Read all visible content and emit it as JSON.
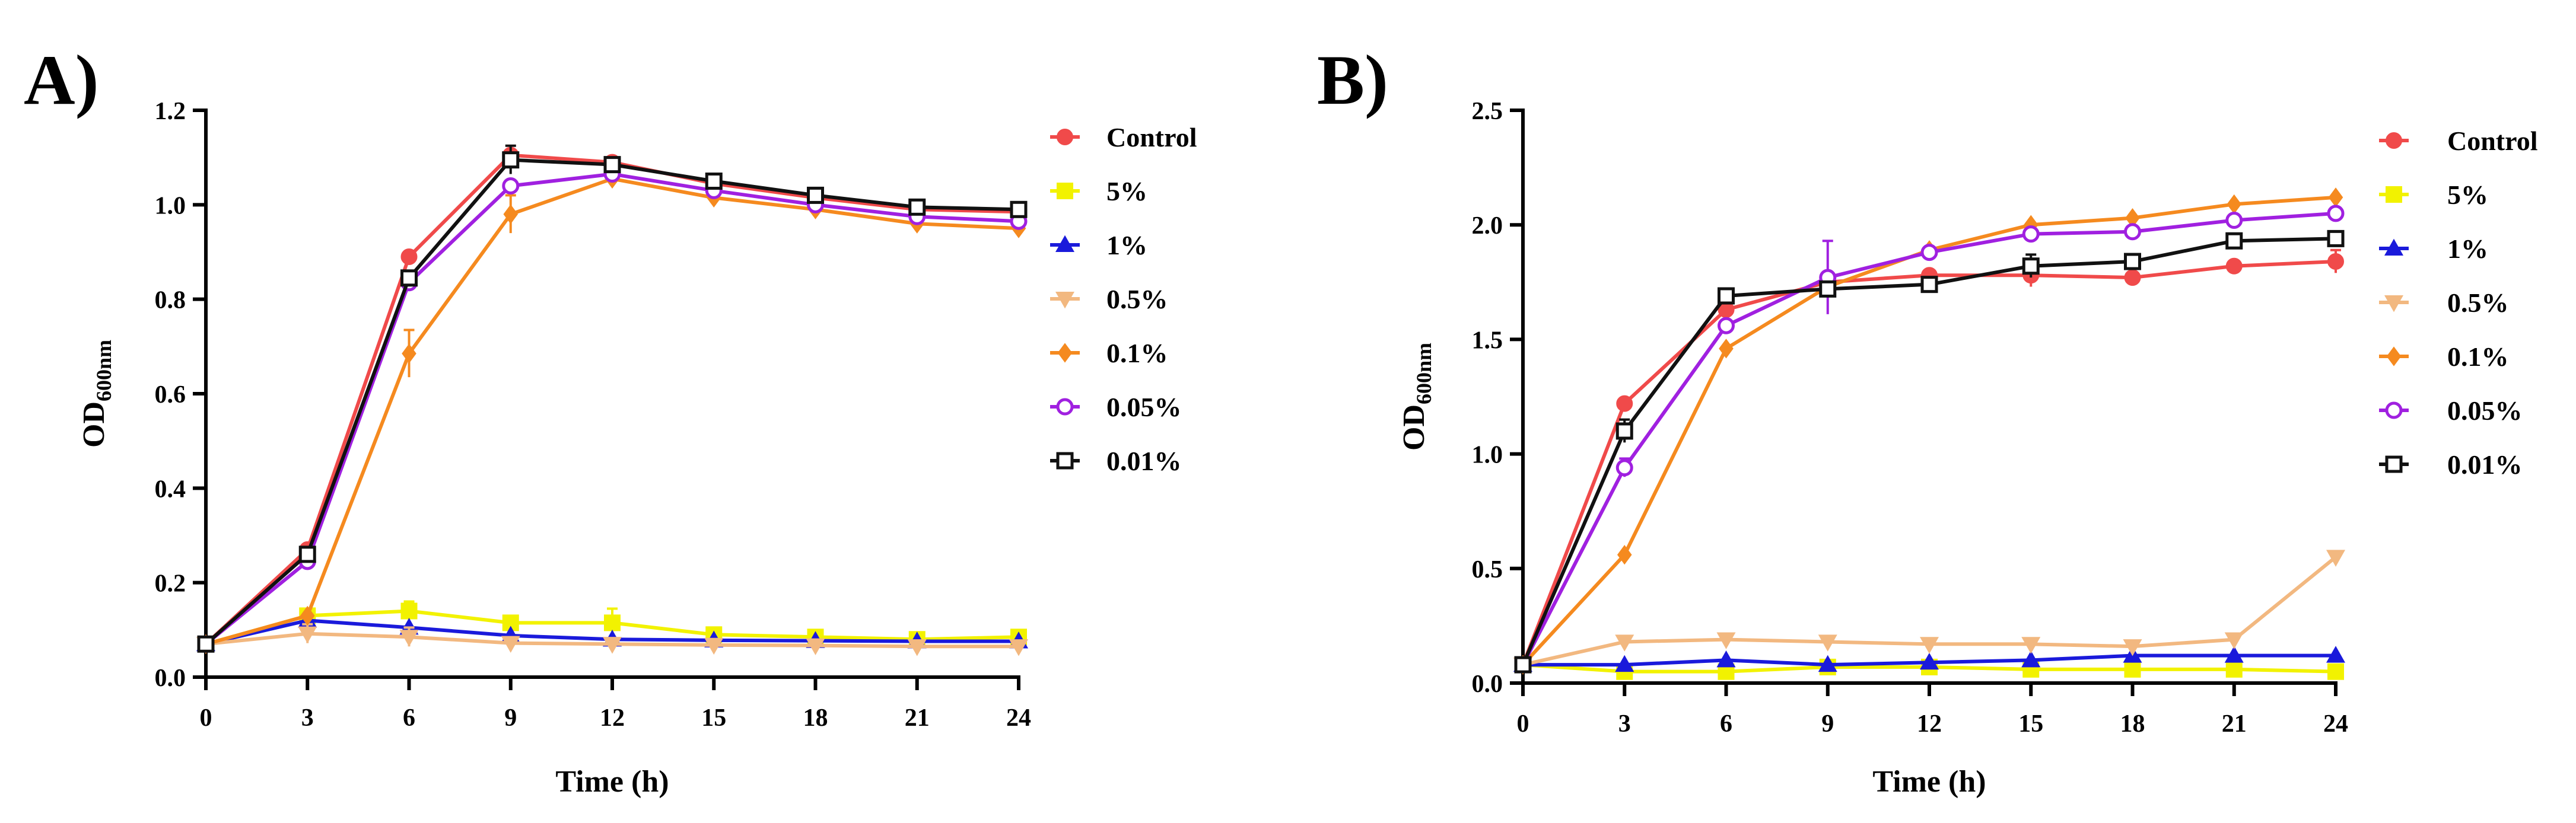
{
  "chart_data": [
    {
      "type": "line",
      "panel_label": "A)",
      "title": "",
      "xlabel": "Time (h)",
      "ylabel_main": "OD",
      "ylabel_sub": "600nm",
      "x": [
        0,
        3,
        6,
        9,
        12,
        15,
        18,
        21,
        24
      ],
      "xlim": [
        0,
        24
      ],
      "ylim": [
        0,
        1.2
      ],
      "xticks": [
        0,
        3,
        6,
        9,
        12,
        15,
        18,
        21,
        24
      ],
      "yticks": [
        0.0,
        0.2,
        0.4,
        0.6,
        0.8,
        1.0,
        1.2
      ],
      "ytick_labels": [
        "0.0",
        "0.2",
        "0.4",
        "0.6",
        "0.8",
        "1.0",
        "1.2"
      ],
      "grid": false,
      "legend_position": "right",
      "series": [
        {
          "name": "Control",
          "color": "#f04a4a",
          "marker": "circle-filled",
          "values": [
            0.07,
            0.27,
            0.89,
            1.105,
            1.09,
            1.045,
            1.015,
            0.99,
            0.985
          ],
          "errors": [
            0,
            0,
            0,
            0,
            0,
            0,
            0,
            0,
            0
          ]
        },
        {
          "name": "5%",
          "color": "#f2f200",
          "marker": "square-filled",
          "values": [
            0.07,
            0.13,
            0.14,
            0.115,
            0.115,
            0.09,
            0.085,
            0.08,
            0.085
          ],
          "errors": [
            0,
            0.01,
            0.02,
            0.01,
            0.03,
            0.01,
            0,
            0,
            0.01
          ]
        },
        {
          "name": "1%",
          "color": "#1a1adb",
          "marker": "triangle-up",
          "values": [
            0.07,
            0.12,
            0.105,
            0.088,
            0.08,
            0.078,
            0.077,
            0.076,
            0.076
          ],
          "errors": [
            0,
            0,
            0,
            0,
            0,
            0,
            0,
            0,
            0
          ]
        },
        {
          "name": "0.5%",
          "color": "#f2b880",
          "marker": "triangle-down",
          "values": [
            0.07,
            0.092,
            0.085,
            0.072,
            0.07,
            0.068,
            0.067,
            0.065,
            0.065
          ],
          "errors": [
            0,
            0.02,
            0.02,
            0,
            0,
            0,
            0,
            0,
            0
          ]
        },
        {
          "name": "0.1%",
          "color": "#f58a1f",
          "marker": "diamond",
          "values": [
            0.07,
            0.13,
            0.685,
            0.98,
            1.055,
            1.015,
            0.99,
            0.96,
            0.95
          ],
          "errors": [
            0,
            0,
            0.05,
            0.04,
            0,
            0,
            0,
            0,
            0
          ]
        },
        {
          "name": "0.05%",
          "color": "#a020e0",
          "marker": "circle-open",
          "values": [
            0.07,
            0.245,
            0.835,
            1.04,
            1.065,
            1.03,
            1.0,
            0.975,
            0.965
          ],
          "errors": [
            0,
            0,
            0,
            0,
            0,
            0,
            0,
            0,
            0
          ]
        },
        {
          "name": "0.01%",
          "color": "#111111",
          "marker": "square-open",
          "values": [
            0.07,
            0.26,
            0.845,
            1.095,
            1.085,
            1.05,
            1.02,
            0.995,
            0.99
          ],
          "errors": [
            0,
            0,
            0,
            0.03,
            0,
            0,
            0,
            0,
            0
          ]
        }
      ]
    },
    {
      "type": "line",
      "panel_label": "B)",
      "title": "",
      "xlabel": "Time (h)",
      "ylabel_main": "OD",
      "ylabel_sub": "600nm",
      "x": [
        0,
        3,
        6,
        9,
        12,
        15,
        18,
        21,
        24
      ],
      "xlim": [
        0,
        24
      ],
      "ylim": [
        0,
        2.5
      ],
      "xticks": [
        0,
        3,
        6,
        9,
        12,
        15,
        18,
        21,
        24
      ],
      "yticks": [
        0.0,
        0.5,
        1.0,
        1.5,
        2.0,
        2.5
      ],
      "ytick_labels": [
        "0.0",
        "0.5",
        "1.0",
        "1.5",
        "2.0",
        "2.5"
      ],
      "grid": false,
      "legend_position": "right",
      "series": [
        {
          "name": "Control",
          "color": "#f04a4a",
          "marker": "circle-filled",
          "values": [
            0.08,
            1.22,
            1.63,
            1.75,
            1.78,
            1.78,
            1.77,
            1.82,
            1.84
          ],
          "errors": [
            0,
            0,
            0,
            0,
            0,
            0.05,
            0,
            0,
            0.05
          ]
        },
        {
          "name": "5%",
          "color": "#f2f200",
          "marker": "square-filled",
          "values": [
            0.08,
            0.05,
            0.05,
            0.07,
            0.07,
            0.06,
            0.06,
            0.06,
            0.05
          ],
          "errors": [
            0,
            0,
            0,
            0,
            0,
            0,
            0,
            0,
            0
          ]
        },
        {
          "name": "1%",
          "color": "#1a1adb",
          "marker": "triangle-up",
          "values": [
            0.08,
            0.08,
            0.1,
            0.08,
            0.09,
            0.1,
            0.12,
            0.12,
            0.12
          ],
          "errors": [
            0,
            0,
            0,
            0,
            0,
            0,
            0,
            0,
            0
          ]
        },
        {
          "name": "0.5%",
          "color": "#f2b880",
          "marker": "triangle-down",
          "values": [
            0.08,
            0.18,
            0.19,
            0.18,
            0.17,
            0.17,
            0.16,
            0.19,
            0.55
          ],
          "errors": [
            0,
            0,
            0,
            0,
            0,
            0,
            0,
            0,
            0
          ]
        },
        {
          "name": "0.1%",
          "color": "#f58a1f",
          "marker": "diamond",
          "values": [
            0.08,
            0.56,
            1.46,
            1.73,
            1.89,
            2.0,
            2.03,
            2.09,
            2.12
          ],
          "errors": [
            0,
            0,
            0,
            0,
            0,
            0,
            0,
            0,
            0
          ]
        },
        {
          "name": "0.05%",
          "color": "#a020e0",
          "marker": "circle-open",
          "values": [
            0.08,
            0.94,
            1.56,
            1.77,
            1.88,
            1.96,
            1.97,
            2.02,
            2.05
          ],
          "errors": [
            0,
            0.04,
            0,
            0.16,
            0,
            0,
            0,
            0,
            0
          ]
        },
        {
          "name": "0.01%",
          "color": "#111111",
          "marker": "square-open",
          "values": [
            0.08,
            1.1,
            1.69,
            1.72,
            1.74,
            1.82,
            1.84,
            1.93,
            1.94
          ],
          "errors": [
            0,
            0.05,
            0,
            0,
            0,
            0.05,
            0,
            0,
            0
          ]
        }
      ]
    }
  ]
}
